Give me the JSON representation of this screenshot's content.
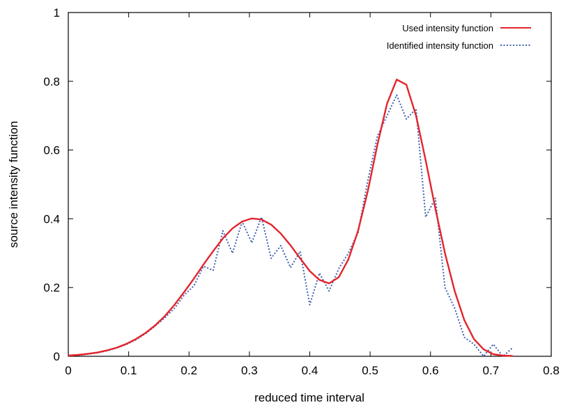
{
  "chart_data": {
    "type": "line",
    "xlabel": "reduced time interval",
    "ylabel": "source intensity function",
    "xlim": [
      0,
      0.8
    ],
    "ylim": [
      0,
      1
    ],
    "x_ticks": [
      "0",
      "0.1",
      "0.2",
      "0.3",
      "0.4",
      "0.5",
      "0.6",
      "0.7",
      "0.8"
    ],
    "y_ticks": [
      "0",
      "0.2",
      "0.4",
      "0.6",
      "0.8",
      "1"
    ],
    "grid": false,
    "legend_position": "top-right",
    "series": [
      {
        "name": "Used intensity function",
        "color": "#e3242b",
        "style": "solid",
        "x": [
          0,
          0.016,
          0.032,
          0.048,
          0.064,
          0.08,
          0.096,
          0.112,
          0.128,
          0.144,
          0.16,
          0.176,
          0.192,
          0.208,
          0.224,
          0.24,
          0.256,
          0.272,
          0.288,
          0.304,
          0.32,
          0.336,
          0.352,
          0.368,
          0.384,
          0.4,
          0.416,
          0.432,
          0.448,
          0.464,
          0.48,
          0.496,
          0.512,
          0.528,
          0.544,
          0.56,
          0.576,
          0.592,
          0.608,
          0.624,
          0.64,
          0.656,
          0.672,
          0.688,
          0.704,
          0.72,
          0.736
        ],
        "y": [
          0.002,
          0.004,
          0.007,
          0.011,
          0.017,
          0.025,
          0.036,
          0.05,
          0.068,
          0.09,
          0.117,
          0.15,
          0.187,
          0.226,
          0.267,
          0.306,
          0.343,
          0.372,
          0.392,
          0.401,
          0.398,
          0.383,
          0.357,
          0.323,
          0.285,
          0.248,
          0.222,
          0.212,
          0.23,
          0.282,
          0.365,
          0.48,
          0.615,
          0.735,
          0.805,
          0.79,
          0.7,
          0.57,
          0.43,
          0.3,
          0.19,
          0.105,
          0.05,
          0.02,
          0.006,
          0.002,
          0.001
        ]
      },
      {
        "name": "Identified intensity function",
        "color": "#3f5fb0",
        "style": "dotted",
        "x": [
          0,
          0.016,
          0.032,
          0.048,
          0.064,
          0.08,
          0.096,
          0.112,
          0.128,
          0.144,
          0.16,
          0.176,
          0.192,
          0.208,
          0.224,
          0.24,
          0.256,
          0.272,
          0.288,
          0.304,
          0.32,
          0.336,
          0.352,
          0.368,
          0.384,
          0.4,
          0.416,
          0.432,
          0.448,
          0.464,
          0.48,
          0.496,
          0.512,
          0.528,
          0.544,
          0.56,
          0.576,
          0.592,
          0.608,
          0.624,
          0.64,
          0.656,
          0.672,
          0.688,
          0.704,
          0.72,
          0.736
        ],
        "y": [
          0.002,
          0.003,
          0.006,
          0.01,
          0.016,
          0.024,
          0.034,
          0.048,
          0.066,
          0.088,
          0.112,
          0.14,
          0.178,
          0.205,
          0.262,
          0.25,
          0.365,
          0.3,
          0.392,
          0.33,
          0.405,
          0.285,
          0.322,
          0.258,
          0.305,
          0.15,
          0.242,
          0.19,
          0.255,
          0.3,
          0.36,
          0.51,
          0.64,
          0.7,
          0.76,
          0.69,
          0.72,
          0.405,
          0.46,
          0.2,
          0.14,
          0.055,
          0.035,
          0.0,
          0.035,
          0.0,
          0.025
        ]
      }
    ]
  }
}
